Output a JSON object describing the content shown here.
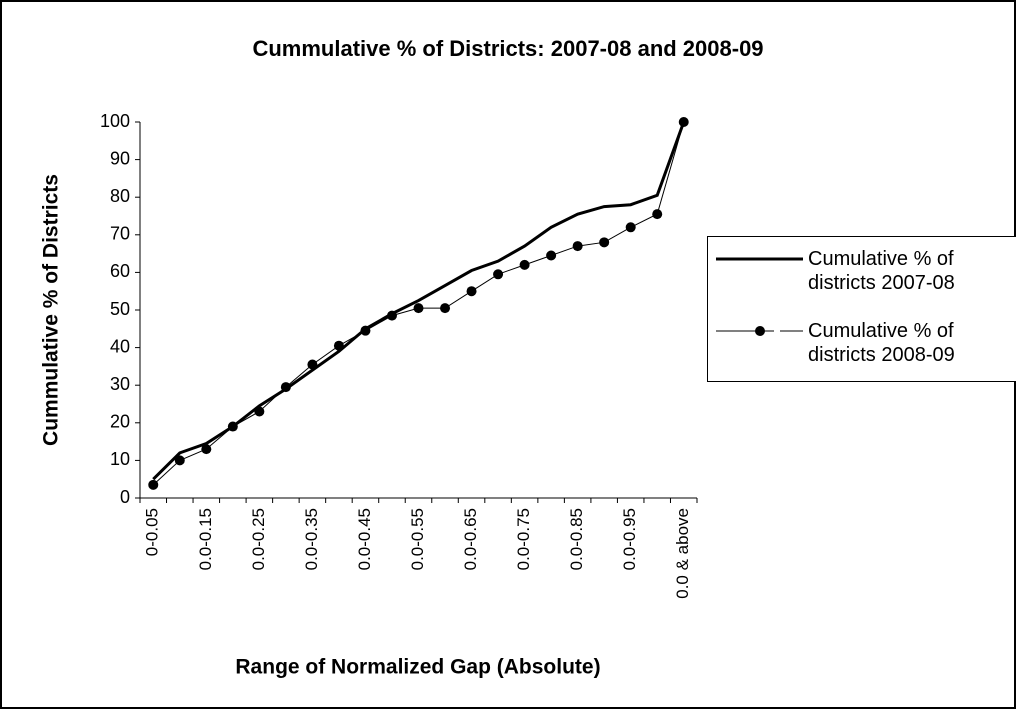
{
  "chart_data": {
    "type": "line",
    "title": "Cummulative % of Districts: 2007-08 and 2008-09",
    "x_label": "Range of Normalized Gap (Absolute)",
    "y_label": "Cummulative % of Districts",
    "categories": [
      "0-0.05",
      null,
      "0.0-0.15",
      null,
      "0.0-0.25",
      null,
      "0.0-0.35",
      null,
      "0.0-0.45",
      null,
      "0.0-0.55",
      null,
      "0.0-0.65",
      null,
      "0.0-0.75",
      null,
      "0.0-0.85",
      null,
      "0.0-0.95",
      null,
      "0.0 & above"
    ],
    "series": [
      {
        "name": "Cumulative % of districts 2007-08",
        "color": "#000000",
        "values": [
          5,
          12,
          14.5,
          19,
          24.5,
          29,
          34,
          39,
          45,
          49,
          52.5,
          56.5,
          60.5,
          63,
          67,
          72,
          75.5,
          77.5,
          78,
          80.5,
          100
        ]
      },
      {
        "name": "Cumulative % of districts 2008-09",
        "color": "#000000",
        "values": [
          3.5,
          10,
          13,
          19,
          23,
          29.5,
          35.5,
          40.5,
          44.5,
          48.5,
          50.5,
          50.5,
          55,
          59.5,
          62,
          64.5,
          67,
          68,
          72,
          75.5,
          100
        ]
      }
    ],
    "ylim": [
      0,
      100
    ],
    "yticks": [
      0,
      10,
      20,
      30,
      40,
      50,
      60,
      70,
      80,
      90,
      100
    ]
  }
}
